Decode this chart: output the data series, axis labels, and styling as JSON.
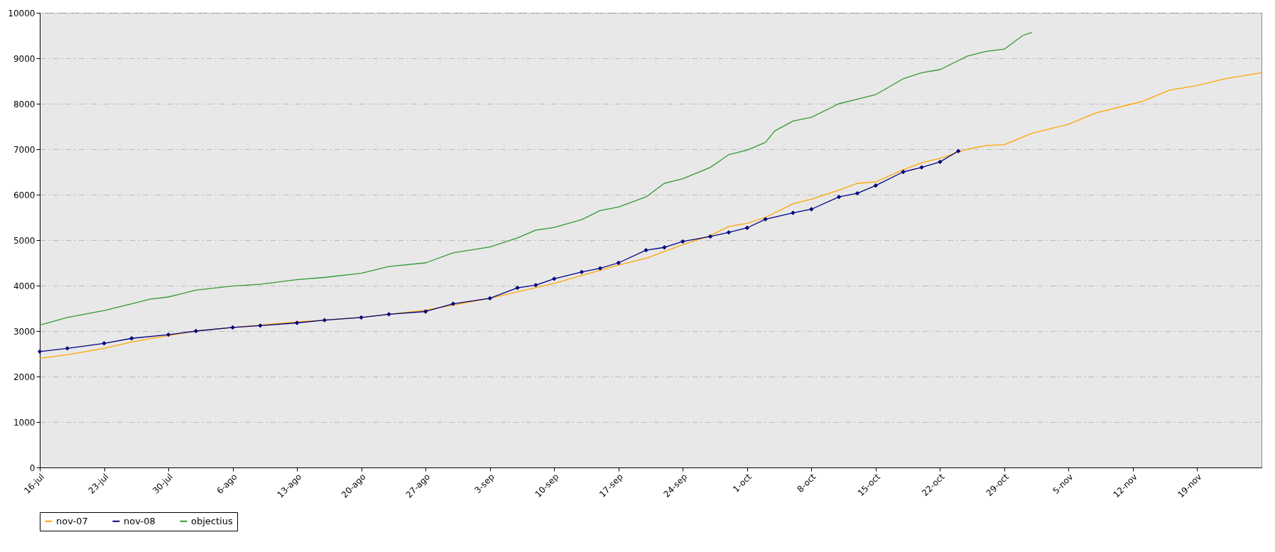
{
  "chart_data": {
    "type": "line",
    "xlim": [
      "--07-16",
      "--11-26"
    ],
    "ylim": [
      0,
      10000
    ],
    "yticks": [
      0,
      1000,
      2000,
      3000,
      4000,
      5000,
      6000,
      7000,
      8000,
      9000,
      10000
    ],
    "xticks": [
      {
        "value": "--07-16",
        "label": "16-jul"
      },
      {
        "value": "--07-23",
        "label": "23-jul"
      },
      {
        "value": "--07-30",
        "label": "30-jul"
      },
      {
        "value": "--08-06",
        "label": "6-ago"
      },
      {
        "value": "--08-13",
        "label": "13-ago"
      },
      {
        "value": "--08-20",
        "label": "20-ago"
      },
      {
        "value": "--08-27",
        "label": "27-ago"
      },
      {
        "value": "--09-03",
        "label": "3-sep"
      },
      {
        "value": "--09-10",
        "label": "10-sep"
      },
      {
        "value": "--09-17",
        "label": "17-sep"
      },
      {
        "value": "--09-24",
        "label": "24-sep"
      },
      {
        "value": "--10-01",
        "label": "1-oct"
      },
      {
        "value": "--10-08",
        "label": "8-oct"
      },
      {
        "value": "--10-15",
        "label": "15-oct"
      },
      {
        "value": "--10-22",
        "label": "22-oct"
      },
      {
        "value": "--10-29",
        "label": "29-oct"
      },
      {
        "value": "--11-05",
        "label": "5-nov"
      },
      {
        "value": "--11-12",
        "label": "12-nov"
      },
      {
        "value": "--11-19",
        "label": "19-nov"
      }
    ],
    "grid": "y",
    "legend": "bottom",
    "line_style": "solid",
    "series": [
      {
        "name": "nov-07",
        "color": "#ffa500",
        "marker": "none",
        "x": [
          "--07-16",
          "--07-19",
          "--07-23",
          "--07-26",
          "--07-30",
          "--08-02",
          "--08-06",
          "--08-13",
          "--08-20",
          "--08-27",
          "--09-03",
          "--09-10",
          "--09-17",
          "--09-20",
          "--09-24",
          "--09-27",
          "--09-29",
          "--10-01",
          "--10-03",
          "--10-06",
          "--10-08",
          "--10-11",
          "--10-13",
          "--10-15",
          "--10-18",
          "--10-20",
          "--10-22",
          "--10-25",
          "--10-27",
          "--10-29",
          "--11-01",
          "--11-05",
          "--11-08",
          "--11-12",
          "--11-13",
          "--11-16",
          "--11-19",
          "--11-22",
          "--11-26"
        ],
        "values": [
          2400,
          2480,
          2620,
          2760,
          2900,
          3000,
          3080,
          3200,
          3300,
          3460,
          3720,
          4050,
          4450,
          4600,
          4900,
          5100,
          5300,
          5370,
          5500,
          5800,
          5900,
          6100,
          6250,
          6280,
          6550,
          6700,
          6800,
          7000,
          7080,
          7100,
          7350,
          7550,
          7800,
          8000,
          8050,
          8300,
          8400,
          8550,
          8680
        ]
      },
      {
        "name": "nov-08",
        "color": "#000080",
        "marker": "diamond",
        "x": [
          "--07-16",
          "--07-19",
          "--07-23",
          "--07-26",
          "--07-30",
          "--08-02",
          "--08-06",
          "--08-09",
          "--08-13",
          "--08-16",
          "--08-20",
          "--08-23",
          "--08-27",
          "--08-30",
          "--09-03",
          "--09-06",
          "--09-08",
          "--09-10",
          "--09-13",
          "--09-15",
          "--09-17",
          "--09-20",
          "--09-22",
          "--09-24",
          "--09-27",
          "--09-29",
          "--10-01",
          "--10-03",
          "--10-06",
          "--10-08",
          "--10-11",
          "--10-13",
          "--10-15",
          "--10-18",
          "--10-20",
          "--10-22",
          "--10-24"
        ],
        "values": [
          2550,
          2620,
          2730,
          2840,
          2920,
          3000,
          3080,
          3120,
          3180,
          3240,
          3300,
          3370,
          3430,
          3600,
          3720,
          3950,
          4010,
          4150,
          4300,
          4380,
          4500,
          4780,
          4840,
          4970,
          5080,
          5170,
          5270,
          5460,
          5600,
          5680,
          5950,
          6030,
          6200,
          6500,
          6600,
          6720,
          6960
        ]
      },
      {
        "name": "objectius",
        "color": "#339933",
        "marker": "none",
        "x": [
          "--07-16",
          "--07-19",
          "--07-23",
          "--07-26",
          "--07-28",
          "--07-30",
          "--08-02",
          "--08-06",
          "--08-09",
          "--08-13",
          "--08-16",
          "--08-20",
          "--08-23",
          "--08-27",
          "--08-30",
          "--09-03",
          "--09-06",
          "--09-08",
          "--09-10",
          "--09-13",
          "--09-15",
          "--09-17",
          "--09-20",
          "--09-22",
          "--09-24",
          "--09-27",
          "--09-29",
          "--10-01",
          "--10-03",
          "--10-04",
          "--10-06",
          "--10-08",
          "--10-11",
          "--10-13",
          "--10-15",
          "--10-18",
          "--10-20",
          "--10-22",
          "--10-25",
          "--10-27",
          "--10-29",
          "--10-31",
          "--11-01"
        ],
        "values": [
          3130,
          3300,
          3450,
          3600,
          3700,
          3750,
          3900,
          3990,
          4030,
          4130,
          4180,
          4270,
          4420,
          4500,
          4720,
          4850,
          5050,
          5220,
          5280,
          5450,
          5650,
          5730,
          5950,
          6250,
          6350,
          6600,
          6880,
          6980,
          7150,
          7400,
          7620,
          7700,
          8000,
          8100,
          8200,
          8550,
          8680,
          8750,
          9050,
          9150,
          9200,
          9500,
          9570
        ]
      }
    ]
  }
}
